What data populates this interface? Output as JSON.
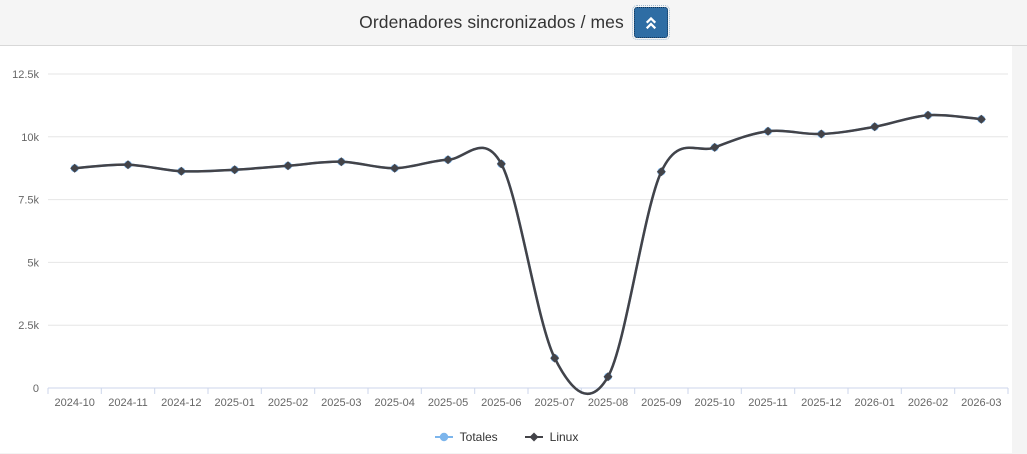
{
  "header": {
    "title": "Ordenadores sincronizados / mes",
    "collapse_button": {
      "icon": "angle-double-up-icon",
      "background": "#2e6da4",
      "icon_color": "#ffffff"
    }
  },
  "chart_data": {
    "type": "line",
    "curve": "spline",
    "title": "Ordenadores sincronizados / mes",
    "x": [
      "2024-10",
      "2024-11",
      "2024-12",
      "2025-01",
      "2025-02",
      "2025-03",
      "2025-04",
      "2025-05",
      "2025-06",
      "2025-07",
      "2025-08",
      "2025-09",
      "2025-10",
      "2025-11",
      "2025-12",
      "2026-01",
      "2026-02",
      "2026-03"
    ],
    "series": [
      {
        "name": "Totales",
        "color": "#7cb5ec",
        "marker": "circle",
        "values": [
          8750,
          8890,
          8630,
          8690,
          8850,
          9010,
          8750,
          9090,
          8920,
          1190,
          450,
          8610,
          9580,
          10220,
          10110,
          10400,
          10860,
          10700
        ]
      },
      {
        "name": "Linux",
        "color": "#434348",
        "marker": "diamond",
        "values": [
          8750,
          8890,
          8630,
          8690,
          8850,
          9010,
          8750,
          9090,
          8920,
          1190,
          450,
          8610,
          9580,
          10220,
          10110,
          10400,
          10860,
          10700
        ]
      }
    ],
    "ylim": [
      0,
      12500
    ],
    "yticks": [
      {
        "value": 0,
        "label": "0"
      },
      {
        "value": 2500,
        "label": "2.5k"
      },
      {
        "value": 5000,
        "label": "5k"
      },
      {
        "value": 7500,
        "label": "7.5k"
      },
      {
        "value": 10000,
        "label": "10k"
      },
      {
        "value": 12500,
        "label": "12.5k"
      }
    ],
    "grid": true,
    "legend_position": "bottom",
    "colors": {
      "gridline": "#e6e6e6",
      "axis": "#ccd6eb",
      "axis_label": "#666666",
      "legend_text": "#333333"
    }
  }
}
